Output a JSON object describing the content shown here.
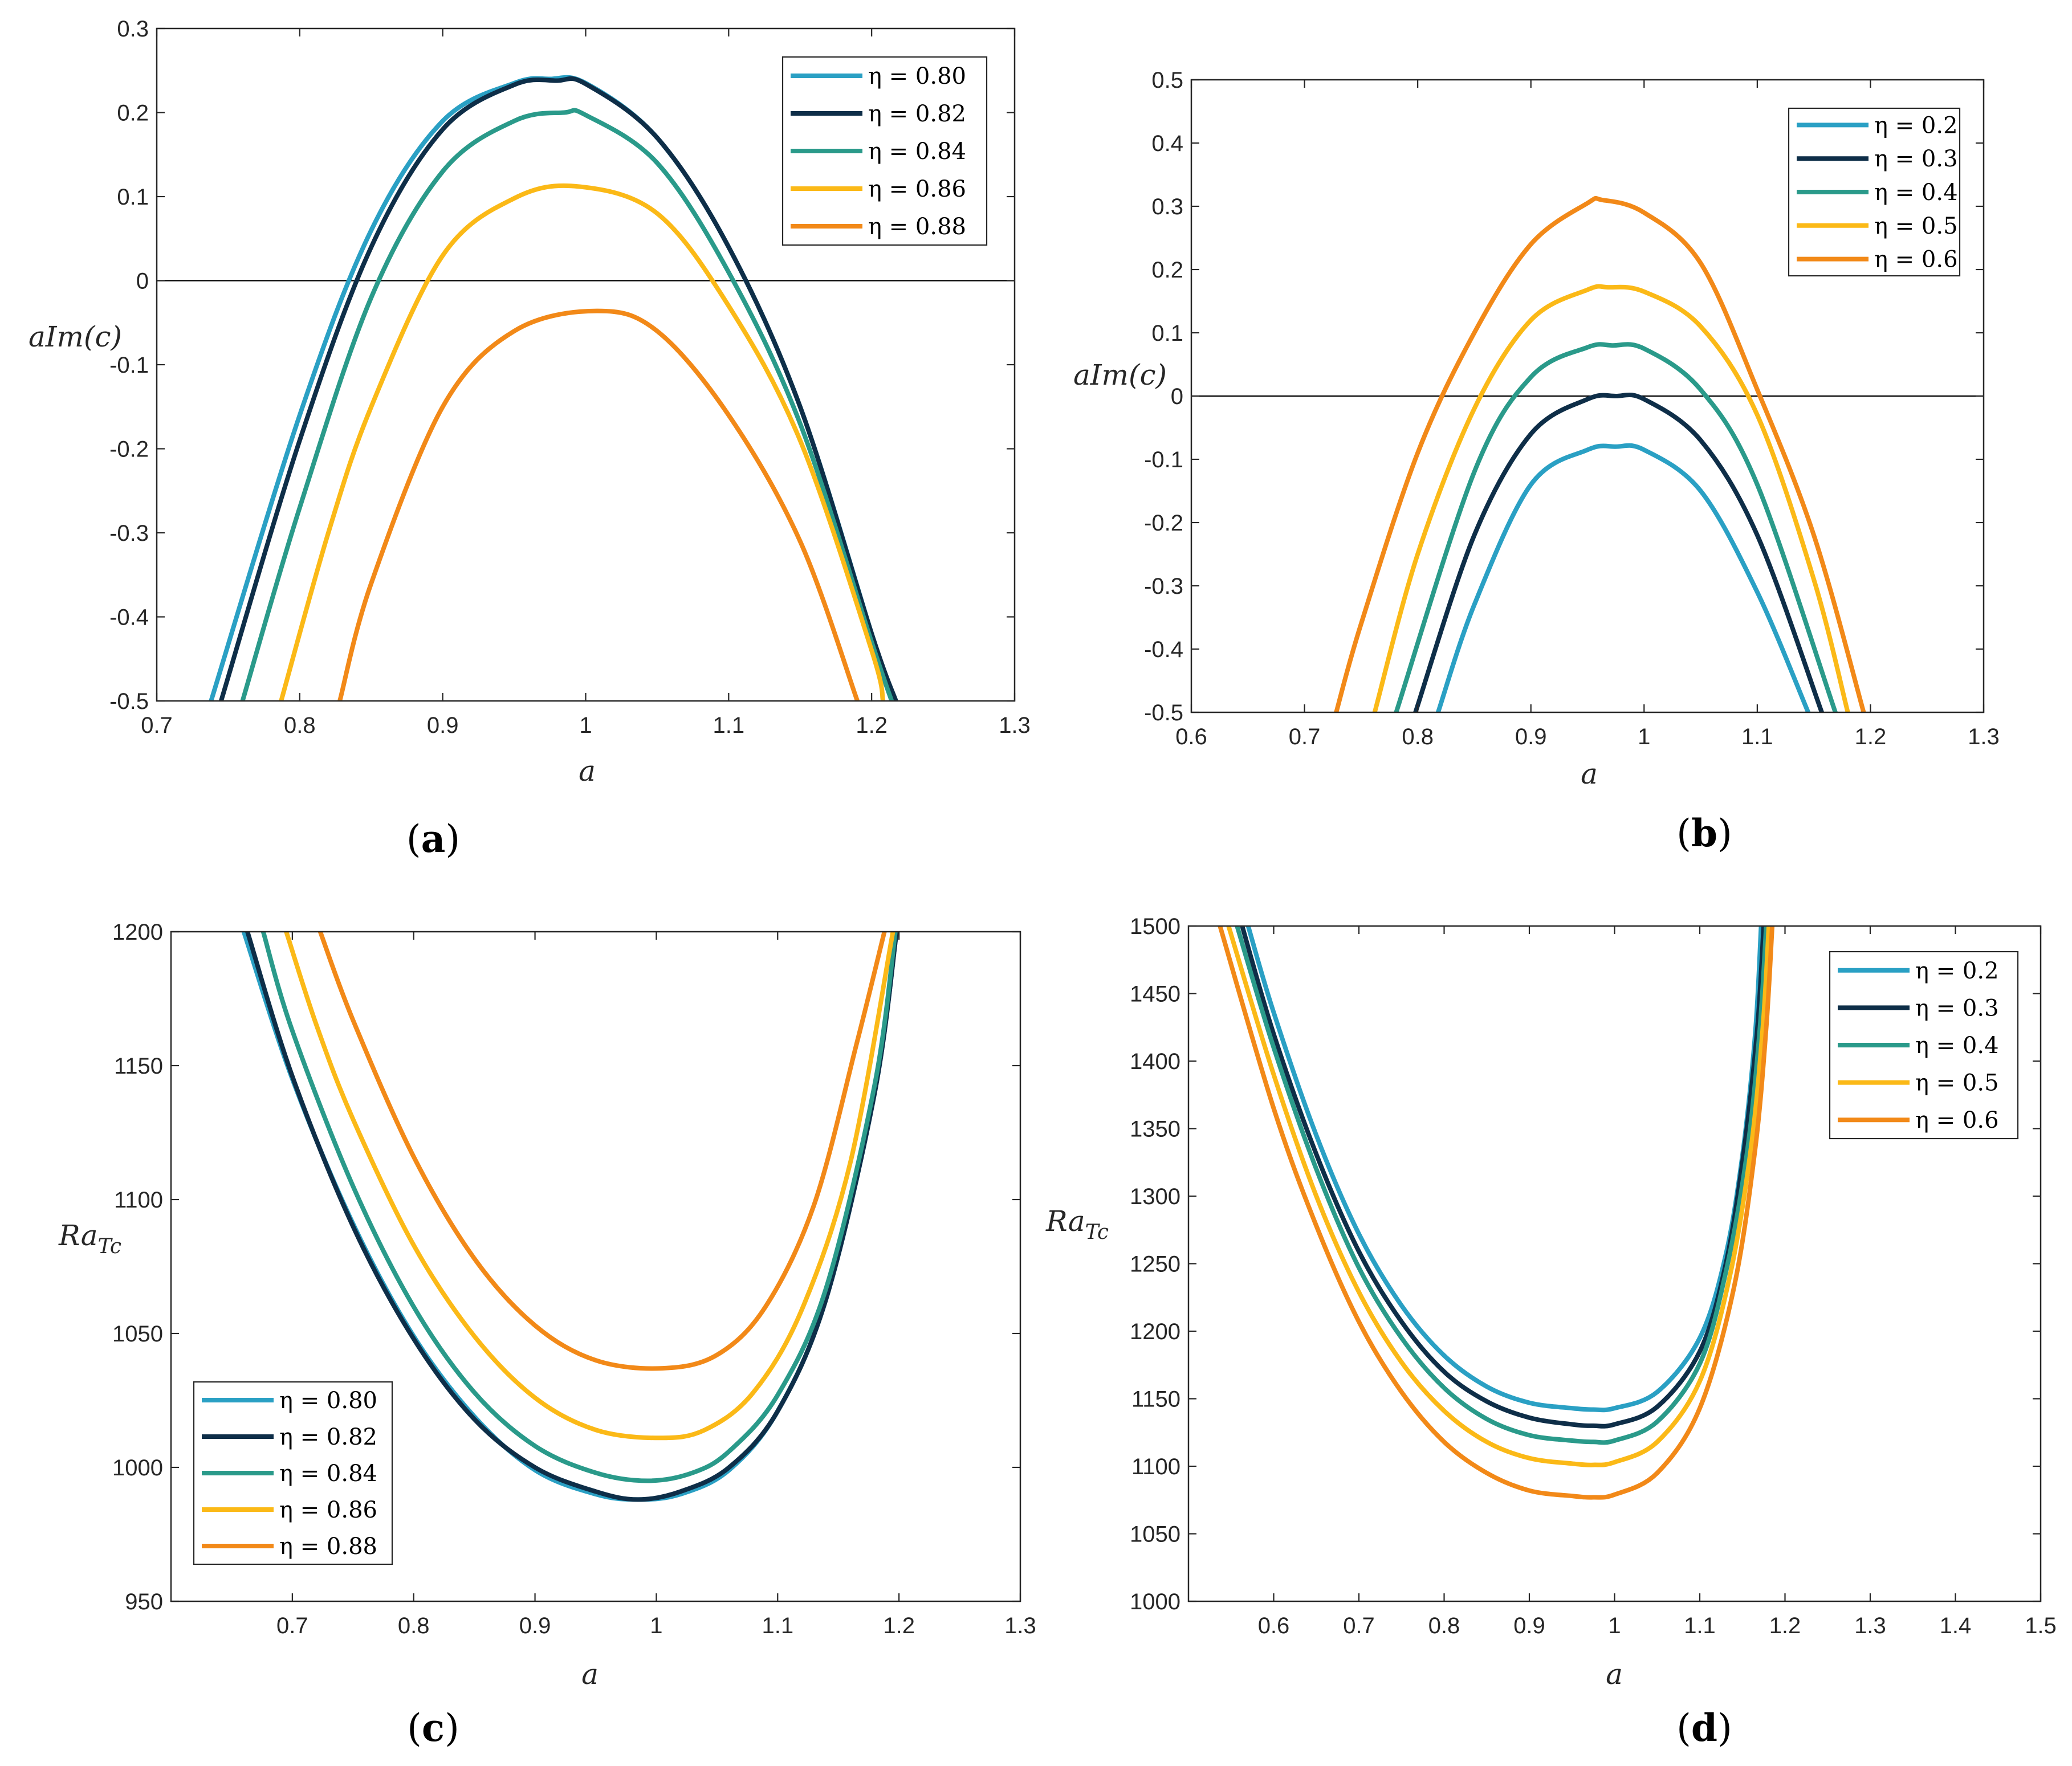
{
  "chart_data": [
    {
      "id": "a",
      "type": "line",
      "panel_label": "(a)",
      "xlabel": "a",
      "ylabel": "aIm(c)",
      "xlim": [
        0.7,
        1.3
      ],
      "ylim": [
        -0.5,
        0.3
      ],
      "xticks": [
        "0.7",
        "0.8",
        "0.9",
        "1",
        "1.1",
        "1.2",
        "1.3"
      ],
      "yticks": [
        "0.3",
        "0.2",
        "0.1",
        "0",
        "-0.1",
        "-0.2",
        "-0.3",
        "-0.4",
        "-0.5"
      ],
      "legend_position": "top-right",
      "reference_line_y": 0,
      "series": [
        {
          "name": "η = 0.80",
          "color": "#2aa0c4",
          "x": [
            0.738,
            0.8,
            0.85,
            0.9,
            0.95,
            0.975,
            1.0,
            1.05,
            1.1,
            1.15,
            1.2,
            1.215
          ],
          "y": [
            -0.5,
            -0.16,
            0.06,
            0.19,
            0.235,
            0.24,
            0.235,
            0.17,
            0.04,
            -0.15,
            -0.42,
            -0.5
          ]
        },
        {
          "name": "η = 0.82",
          "color": "#0e2e48",
          "x": [
            0.745,
            0.8,
            0.85,
            0.9,
            0.95,
            0.98,
            1.0,
            1.05,
            1.1,
            1.15,
            1.2,
            1.217
          ],
          "y": [
            -0.5,
            -0.19,
            0.04,
            0.18,
            0.233,
            0.238,
            0.234,
            0.17,
            0.04,
            -0.15,
            -0.42,
            -0.5
          ]
        },
        {
          "name": "η = 0.84",
          "color": "#2a9a8a",
          "x": [
            0.76,
            0.8,
            0.85,
            0.9,
            0.95,
            0.985,
            1.0,
            1.05,
            1.1,
            1.15,
            1.2,
            1.214
          ],
          "y": [
            -0.5,
            -0.27,
            -0.02,
            0.13,
            0.19,
            0.2,
            0.197,
            0.14,
            0.01,
            -0.17,
            -0.43,
            -0.5
          ]
        },
        {
          "name": "η = 0.86",
          "color": "#fbb917",
          "x": [
            0.787,
            0.82,
            0.85,
            0.9,
            0.95,
            0.995,
            1.05,
            1.1,
            1.15,
            1.2,
            1.208
          ],
          "y": [
            -0.5,
            -0.3,
            -0.15,
            0.03,
            0.098,
            0.112,
            0.08,
            -0.03,
            -0.19,
            -0.44,
            -0.5
          ]
        },
        {
          "name": "η = 0.88",
          "color": "#f28918",
          "x": [
            0.828,
            0.85,
            0.9,
            0.95,
            1.008,
            1.05,
            1.1,
            1.15,
            1.19
          ],
          "y": [
            -0.5,
            -0.36,
            -0.15,
            -0.06,
            -0.036,
            -0.06,
            -0.16,
            -0.31,
            -0.5
          ]
        }
      ]
    },
    {
      "id": "b",
      "type": "line",
      "panel_label": "(b)",
      "xlabel": "a",
      "ylabel": "aIm(c)",
      "xlim": [
        0.6,
        1.3
      ],
      "ylim": [
        -0.5,
        0.5
      ],
      "xticks": [
        "0.6",
        "0.7",
        "0.8",
        "0.9",
        "1",
        "1.1",
        "1.2",
        "1.3"
      ],
      "yticks": [
        "0.5",
        "0.4",
        "0.3",
        "0.2",
        "0.1",
        "0",
        "-0.1",
        "-0.2",
        "-0.3",
        "-0.4",
        "-0.5"
      ],
      "legend_position": "top-right",
      "reference_line_y": 0,
      "series": [
        {
          "name": "η = 0.2",
          "color": "#2aa0c4",
          "x": [
            0.818,
            0.85,
            0.9,
            0.95,
            0.975,
            1.0,
            1.05,
            1.1,
            1.145
          ],
          "y": [
            -0.5,
            -0.33,
            -0.14,
            -0.085,
            -0.08,
            -0.085,
            -0.15,
            -0.31,
            -0.5
          ]
        },
        {
          "name": "η = 0.3",
          "color": "#0e2e48",
          "x": [
            0.798,
            0.85,
            0.9,
            0.95,
            0.975,
            1.0,
            1.05,
            1.1,
            1.157
          ],
          "y": [
            -0.5,
            -0.22,
            -0.06,
            -0.005,
            0.0,
            -0.005,
            -0.07,
            -0.22,
            -0.5
          ]
        },
        {
          "name": "η = 0.4",
          "color": "#2a9a8a",
          "x": [
            0.781,
            0.85,
            0.9,
            0.95,
            0.972,
            1.0,
            1.05,
            1.1,
            1.169
          ],
          "y": [
            -0.5,
            -0.12,
            0.03,
            0.077,
            0.08,
            0.075,
            0.01,
            -0.14,
            -0.5
          ]
        },
        {
          "name": "η = 0.5",
          "color": "#fbb917",
          "x": [
            0.762,
            0.8,
            0.85,
            0.9,
            0.95,
            0.968,
            1.0,
            1.05,
            1.1,
            1.15,
            1.18
          ],
          "y": [
            -0.5,
            -0.25,
            -0.02,
            0.12,
            0.168,
            0.172,
            0.165,
            0.11,
            -0.03,
            -0.29,
            -0.5
          ]
        },
        {
          "name": "η = 0.6",
          "color": "#f28918",
          "x": [
            0.728,
            0.75,
            0.8,
            0.85,
            0.9,
            0.95,
            0.963,
            1.0,
            1.05,
            1.1,
            1.15,
            1.194
          ],
          "y": [
            -0.5,
            -0.36,
            -0.09,
            0.1,
            0.24,
            0.305,
            0.31,
            0.29,
            0.21,
            0.01,
            -0.22,
            -0.5
          ]
        }
      ]
    },
    {
      "id": "c",
      "type": "line",
      "panel_label": "(c)",
      "xlabel": "a",
      "ylabel": "Ra_Tc",
      "xlim": [
        0.6,
        1.3
      ],
      "ylim": [
        950,
        1200
      ],
      "xticks": [
        "0.7",
        "0.8",
        "0.9",
        "1",
        "1.1",
        "1.2",
        "1.3"
      ],
      "yticks": [
        "1200",
        "1150",
        "1100",
        "1050",
        "1000",
        "950"
      ],
      "legend_position": "bottom-left",
      "series": [
        {
          "name": "η = 0.80",
          "color": "#2aa0c4",
          "x": [
            0.66,
            0.7,
            0.75,
            0.8,
            0.85,
            0.9,
            0.95,
            0.985,
            1.02,
            1.06,
            1.1,
            1.14,
            1.18,
            1.198
          ],
          "y": [
            1200,
            1145,
            1091,
            1049,
            1019,
            999,
            990,
            988,
            990,
            999,
            1021,
            1063,
            1140,
            1200
          ]
        },
        {
          "name": "η = 0.82",
          "color": "#0e2e48",
          "x": [
            0.663,
            0.7,
            0.75,
            0.8,
            0.85,
            0.9,
            0.95,
            0.985,
            1.02,
            1.06,
            1.1,
            1.14,
            1.18,
            1.198
          ],
          "y": [
            1200,
            1146,
            1090,
            1048,
            1018,
            1000,
            991,
            988,
            991,
            1000,
            1021,
            1063,
            1140,
            1200
          ]
        },
        {
          "name": "η = 0.84",
          "color": "#2a9a8a",
          "x": [
            0.676,
            0.7,
            0.75,
            0.8,
            0.85,
            0.9,
            0.95,
            0.993,
            1.03,
            1.06,
            1.1,
            1.14,
            1.18,
            1.197
          ],
          "y": [
            1200,
            1163,
            1105,
            1060,
            1028,
            1008,
            998,
            995,
            998,
            1006,
            1027,
            1067,
            1143,
            1200
          ]
        },
        {
          "name": "η = 0.86",
          "color": "#fbb917",
          "x": [
            0.695,
            0.72,
            0.75,
            0.8,
            0.85,
            0.9,
            0.95,
            1.002,
            1.04,
            1.08,
            1.12,
            1.16,
            1.195
          ],
          "y": [
            1200,
            1165,
            1130,
            1083,
            1049,
            1026,
            1014,
            1011,
            1014,
            1028,
            1059,
            1114,
            1200
          ]
        },
        {
          "name": "η = 0.88",
          "color": "#f28918",
          "x": [
            0.723,
            0.75,
            0.8,
            0.85,
            0.9,
            0.95,
            1.005,
            1.05,
            1.09,
            1.13,
            1.165,
            1.188
          ],
          "y": [
            1200,
            1167,
            1116,
            1078,
            1053,
            1040,
            1037,
            1042,
            1060,
            1098,
            1158,
            1200
          ]
        }
      ]
    },
    {
      "id": "d",
      "type": "line",
      "panel_label": "(d)",
      "xlabel": "a",
      "ylabel": "Ra_Tc",
      "xlim": [
        0.5,
        1.5
      ],
      "ylim": [
        1000,
        1500
      ],
      "xticks": [
        "0.6",
        "0.7",
        "0.8",
        "0.9",
        "1",
        "1.1",
        "1.2",
        "1.3",
        "1.4",
        "1.5"
      ],
      "yticks": [
        "1500",
        "1450",
        "1400",
        "1350",
        "1300",
        "1250",
        "1200",
        "1150",
        "1100",
        "1050",
        "1000"
      ],
      "legend_position": "top-right",
      "series": [
        {
          "name": "η = 0.2",
          "color": "#2aa0c4",
          "x": [
            0.57,
            0.6,
            0.65,
            0.7,
            0.75,
            0.8,
            0.85,
            0.9,
            0.95,
            0.975,
            1.0,
            1.05,
            1.1,
            1.13,
            1.15,
            1.165,
            1.172
          ],
          "y": [
            1500,
            1436,
            1345,
            1272,
            1219,
            1182,
            1159,
            1147,
            1143,
            1142,
            1143,
            1155,
            1195,
            1255,
            1330,
            1420,
            1500
          ]
        },
        {
          "name": "η = 0.3",
          "color": "#0e2e48",
          "x": [
            0.563,
            0.6,
            0.65,
            0.7,
            0.75,
            0.8,
            0.85,
            0.9,
            0.95,
            0.975,
            1.0,
            1.05,
            1.1,
            1.13,
            1.15,
            1.167,
            1.175
          ],
          "y": [
            1500,
            1420,
            1331,
            1259,
            1207,
            1170,
            1148,
            1136,
            1131,
            1130,
            1131,
            1144,
            1185,
            1248,
            1325,
            1420,
            1500
          ]
        },
        {
          "name": "η = 0.4",
          "color": "#2a9a8a",
          "x": [
            0.557,
            0.6,
            0.65,
            0.7,
            0.75,
            0.8,
            0.85,
            0.9,
            0.95,
            0.975,
            1.0,
            1.05,
            1.1,
            1.13,
            1.155,
            1.17,
            1.178
          ],
          "y": [
            1500,
            1410,
            1320,
            1247,
            1195,
            1158,
            1135,
            1123,
            1119,
            1118,
            1119,
            1133,
            1176,
            1242,
            1330,
            1420,
            1500
          ]
        },
        {
          "name": "η = 0.5",
          "color": "#fbb917",
          "x": [
            0.547,
            0.6,
            0.65,
            0.7,
            0.75,
            0.8,
            0.85,
            0.9,
            0.95,
            0.975,
            1.0,
            1.05,
            1.1,
            1.135,
            1.16,
            1.174,
            1.181
          ],
          "y": [
            1500,
            1390,
            1300,
            1229,
            1177,
            1141,
            1118,
            1106,
            1102,
            1101,
            1103,
            1118,
            1163,
            1240,
            1335,
            1425,
            1500
          ]
        },
        {
          "name": "η = 0.6",
          "color": "#f28918",
          "x": [
            0.537,
            0.6,
            0.65,
            0.7,
            0.75,
            0.8,
            0.85,
            0.9,
            0.95,
            0.975,
            1.0,
            1.05,
            1.1,
            1.14,
            1.165,
            1.178,
            1.185
          ],
          "y": [
            1500,
            1365,
            1278,
            1207,
            1155,
            1118,
            1095,
            1082,
            1078,
            1077,
            1079,
            1095,
            1143,
            1232,
            1335,
            1425,
            1500
          ]
        }
      ]
    }
  ]
}
